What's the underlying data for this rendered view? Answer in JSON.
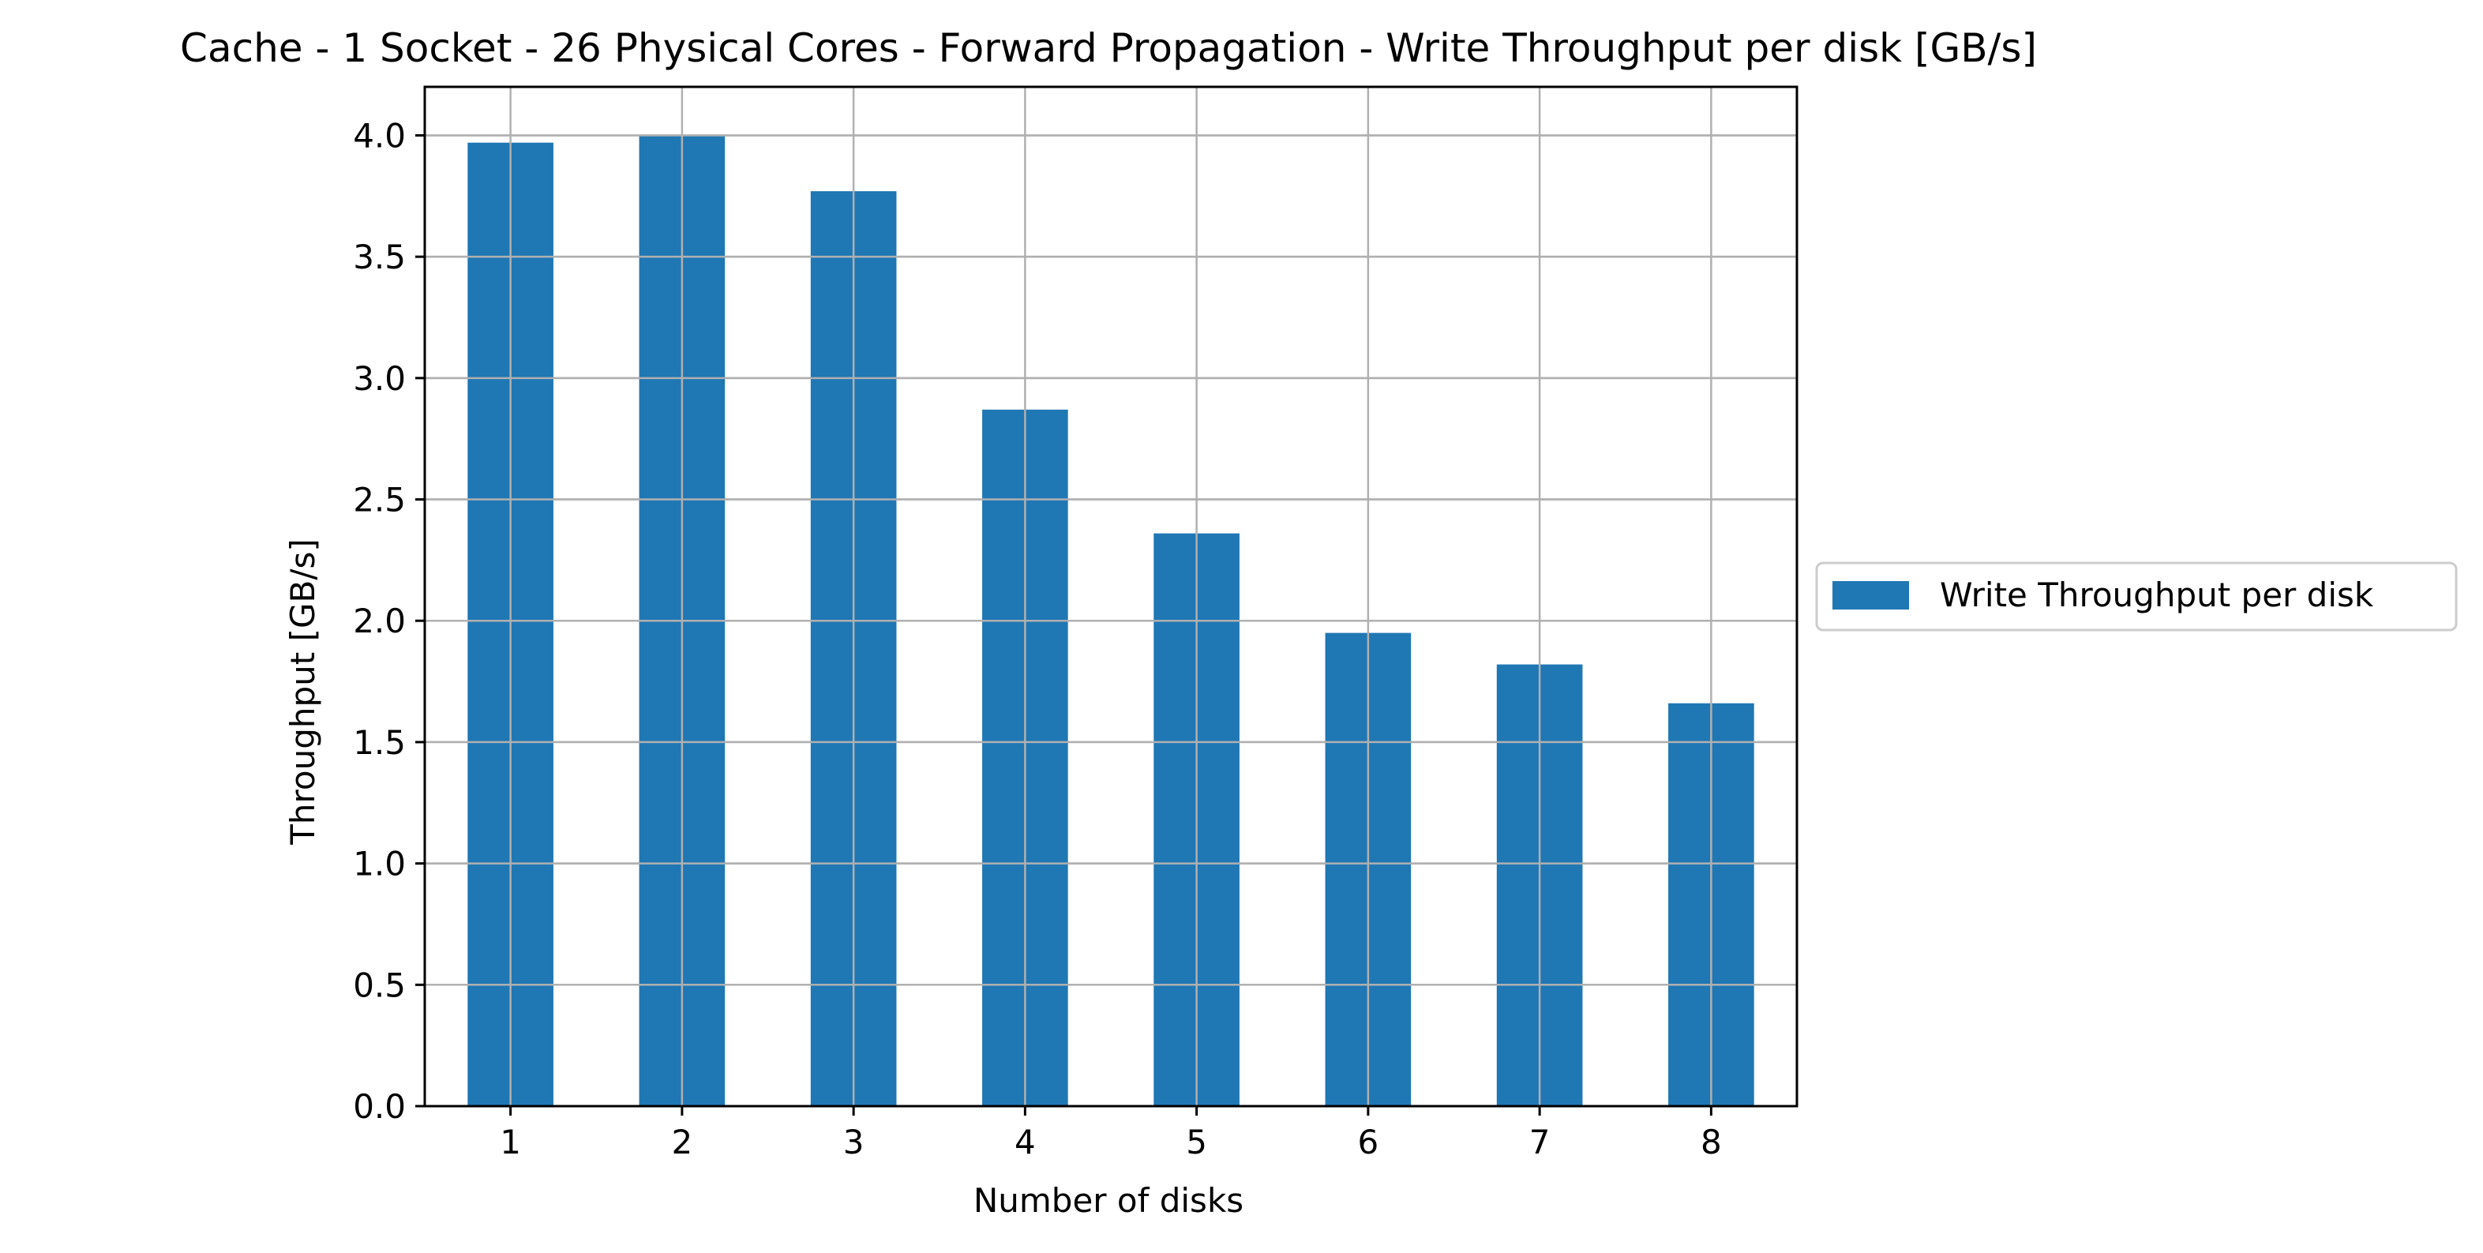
{
  "chart_data": {
    "type": "bar",
    "title": "Cache - 1 Socket - 26 Physical Cores - Forward Propagation - Write Throughput per disk [GB/s]",
    "xlabel": "Number of disks",
    "ylabel": "Throughput [GB/s]",
    "categories": [
      "1",
      "2",
      "3",
      "4",
      "5",
      "6",
      "7",
      "8"
    ],
    "series": [
      {
        "name": "Write Throughput per disk",
        "values": [
          3.97,
          4.0,
          3.77,
          2.87,
          2.36,
          1.95,
          1.82,
          1.66
        ],
        "color": "#1f77b4"
      }
    ],
    "ylim": [
      0,
      4.2
    ],
    "yticks": [
      "0.0",
      "0.5",
      "1.0",
      "1.5",
      "2.0",
      "2.5",
      "3.0",
      "3.5",
      "4.0"
    ],
    "grid": true,
    "legend_position": "center-right-outside"
  }
}
